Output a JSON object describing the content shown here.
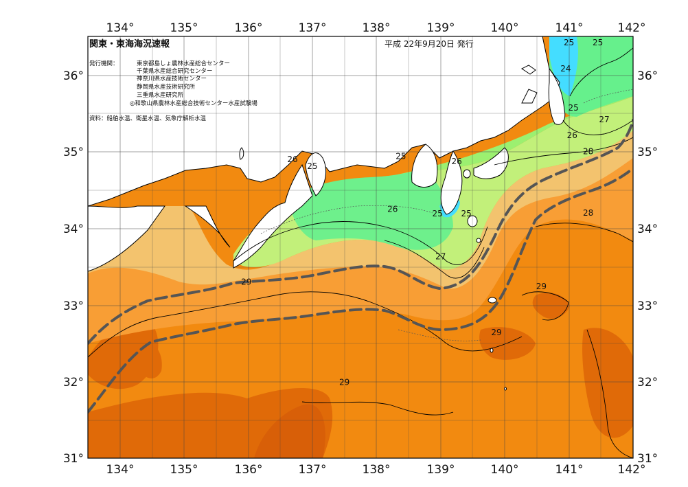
{
  "header": {
    "title": "関東・東海海況速報",
    "date": "平成 22年9月20日 発行",
    "issuer_label": "発行機関：",
    "issuers": [
      "東京都島しょ農林水産総合センター",
      "千葉県水産総合研究センター",
      "神奈川県水産技術センター",
      "静岡県水産技術研究所",
      "三重県水産研究所",
      "◎和歌山県農林水産総合技術センター水産試験場"
    ],
    "source": "資料：船舶水温、衛星水温、気象庁解析水温"
  },
  "axes": {
    "lon_ticks": [
      "134°",
      "135°",
      "136°",
      "137°",
      "138°",
      "139°",
      "140°",
      "141°",
      "142°"
    ],
    "lat_ticks": [
      "31°",
      "32°",
      "33°",
      "34°",
      "35°",
      "36°"
    ]
  },
  "temperature_labels": [
    {
      "text": "25",
      "lon": 141.0,
      "lat": 36.4
    },
    {
      "text": "25",
      "lon": 141.45,
      "lat": 36.4
    },
    {
      "text": "24",
      "lon": 140.95,
      "lat": 36.06
    },
    {
      "text": "25",
      "lon": 141.07,
      "lat": 35.55
    },
    {
      "text": "27",
      "lon": 141.55,
      "lat": 35.4
    },
    {
      "text": "26",
      "lon": 141.05,
      "lat": 35.19
    },
    {
      "text": "28",
      "lon": 141.3,
      "lat": 34.98
    },
    {
      "text": "28",
      "lon": 141.3,
      "lat": 34.18
    },
    {
      "text": "26",
      "lon": 136.69,
      "lat": 34.88
    },
    {
      "text": "25",
      "lon": 137.0,
      "lat": 34.79
    },
    {
      "text": "25",
      "lon": 138.38,
      "lat": 34.92
    },
    {
      "text": "26",
      "lon": 138.25,
      "lat": 34.23
    },
    {
      "text": "26",
      "lon": 139.25,
      "lat": 34.85
    },
    {
      "text": "25",
      "lon": 138.95,
      "lat": 34.17
    },
    {
      "text": "25",
      "lon": 139.4,
      "lat": 34.17
    },
    {
      "text": "27",
      "lon": 139.0,
      "lat": 33.61
    },
    {
      "text": "29",
      "lon": 135.97,
      "lat": 33.28
    },
    {
      "text": "29",
      "lon": 140.57,
      "lat": 33.22
    },
    {
      "text": "29",
      "lon": 139.87,
      "lat": 32.62
    },
    {
      "text": "29",
      "lon": 137.5,
      "lat": 31.97
    }
  ],
  "legend_colors": {
    "t24": "#44ddff",
    "t25": "#66f08c",
    "t26": "#9cf070",
    "t27": "#f3c36e",
    "t28": "#f89e35",
    "t29": "#f28a10",
    "t30": "#e06a08"
  },
  "kuroshio": {
    "description": "Kuroshio current axis (dashed)"
  },
  "extent": {
    "lon_min": 133.5,
    "lon_max": 142,
    "lat_min": 31,
    "lat_max": 36.5
  }
}
